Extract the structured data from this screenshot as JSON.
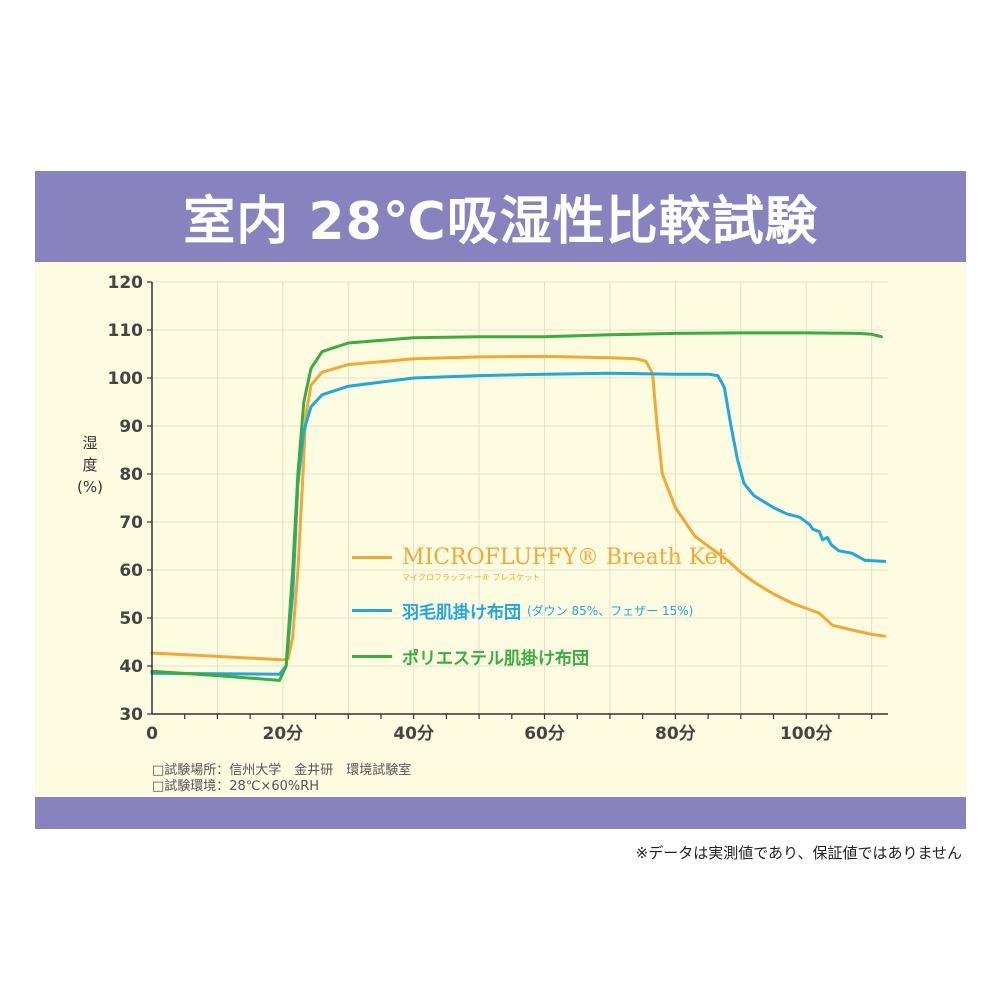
{
  "colors": {
    "banner": "#8882be",
    "panel_bg": "#fdfbe0",
    "grid": "#e3e1c8",
    "axis": "#333333",
    "microfluffy": "#f2a933",
    "down": "#1fa7e0",
    "polyester": "#3aad3f"
  },
  "title": "室内 28℃吸湿性比較試験",
  "notes": [
    "□試験場所：信州大学　金井研　環境試験室",
    "□試験環境：28℃×60%RH"
  ],
  "footer_note": "※データは実測値であり、保証値ではありません",
  "legend": {
    "microfluffy_label": "MICROFLUFFY® Breath Ket",
    "microfluffy_sub": "マイクロフラッフィー® ブレスケット",
    "down_label": "羽毛肌掛け布団",
    "down_sub": "(ダウン 85%、フェザー 15%)",
    "polyester_label": "ポリエステル肌掛け布団"
  },
  "chart_data": {
    "type": "line",
    "ylabel_chars": [
      "湿",
      "度",
      "(%)"
    ],
    "ylim": [
      30,
      120
    ],
    "xlim": [
      0,
      112.5
    ],
    "yticks": [
      30,
      40,
      50,
      60,
      70,
      80,
      90,
      100,
      110,
      120
    ],
    "xticks": [
      {
        "value": 0,
        "label": "0"
      },
      {
        "value": 20,
        "label": "20分"
      },
      {
        "value": 40,
        "label": "40分"
      },
      {
        "value": 60,
        "label": "60分"
      },
      {
        "value": 80,
        "label": "80分"
      },
      {
        "value": 100,
        "label": "100分"
      }
    ],
    "grid": true,
    "series": [
      {
        "name": "MICROFLUFFY® Breath Ket",
        "color_key": "microfluffy",
        "points": [
          [
            0,
            42.7
          ],
          [
            10,
            42
          ],
          [
            20,
            41.3
          ],
          [
            20.8,
            41.5
          ],
          [
            21.5,
            46
          ],
          [
            22.3,
            60
          ],
          [
            23,
            78
          ],
          [
            23.5,
            92
          ],
          [
            24.3,
            98.5
          ],
          [
            26,
            101.2
          ],
          [
            30,
            102.8
          ],
          [
            40,
            104
          ],
          [
            50,
            104.4
          ],
          [
            60,
            104.5
          ],
          [
            70,
            104.2
          ],
          [
            74,
            104
          ],
          [
            75.5,
            103.5
          ],
          [
            76.5,
            101
          ],
          [
            77.2,
            90
          ],
          [
            78,
            80
          ],
          [
            80,
            73
          ],
          [
            83,
            67
          ],
          [
            86,
            64
          ],
          [
            88,
            62
          ],
          [
            90,
            59.5
          ],
          [
            92,
            57.5
          ],
          [
            95,
            55
          ],
          [
            98,
            53
          ],
          [
            100,
            52
          ],
          [
            102,
            51
          ],
          [
            104,
            48.5
          ],
          [
            107,
            47.5
          ],
          [
            110,
            46.6
          ],
          [
            112,
            46.2
          ]
        ]
      },
      {
        "name": "羽毛肌掛け布団",
        "color_key": "down",
        "points": [
          [
            0,
            38.5
          ],
          [
            10,
            38.4
          ],
          [
            19.5,
            38.3
          ],
          [
            20.5,
            40
          ],
          [
            21.5,
            55
          ],
          [
            22.3,
            78
          ],
          [
            23.2,
            89
          ],
          [
            24.3,
            94
          ],
          [
            26,
            96.5
          ],
          [
            30,
            98.3
          ],
          [
            40,
            100
          ],
          [
            50,
            100.5
          ],
          [
            60,
            100.8
          ],
          [
            70,
            101
          ],
          [
            80,
            100.8
          ],
          [
            85,
            100.8
          ],
          [
            86.5,
            100.5
          ],
          [
            87.5,
            98
          ],
          [
            88.5,
            90
          ],
          [
            89.5,
            83
          ],
          [
            90.5,
            78
          ],
          [
            92,
            75.5
          ],
          [
            95,
            73
          ],
          [
            97,
            71.7
          ],
          [
            99,
            71
          ],
          [
            100.5,
            69.5
          ],
          [
            101,
            68.5
          ],
          [
            102,
            68
          ],
          [
            102.5,
            66.3
          ],
          [
            103.2,
            66.8
          ],
          [
            103.8,
            65.3
          ],
          [
            105,
            64
          ],
          [
            107,
            63.5
          ],
          [
            109,
            62
          ],
          [
            112,
            61.8
          ]
        ]
      },
      {
        "name": "ポリエステル肌掛け布団",
        "color_key": "polyester",
        "points": [
          [
            0,
            38.9
          ],
          [
            10,
            38
          ],
          [
            19.5,
            37
          ],
          [
            20.5,
            40
          ],
          [
            21.5,
            60
          ],
          [
            22.3,
            80
          ],
          [
            23.2,
            95
          ],
          [
            24.3,
            102
          ],
          [
            26,
            105.5
          ],
          [
            30,
            107.3
          ],
          [
            40,
            108.4
          ],
          [
            50,
            108.6
          ],
          [
            60,
            108.6
          ],
          [
            70,
            109
          ],
          [
            80,
            109.3
          ],
          [
            90,
            109.4
          ],
          [
            100,
            109.4
          ],
          [
            108,
            109.3
          ],
          [
            110,
            109.1
          ],
          [
            111.5,
            108.6
          ]
        ]
      }
    ]
  }
}
